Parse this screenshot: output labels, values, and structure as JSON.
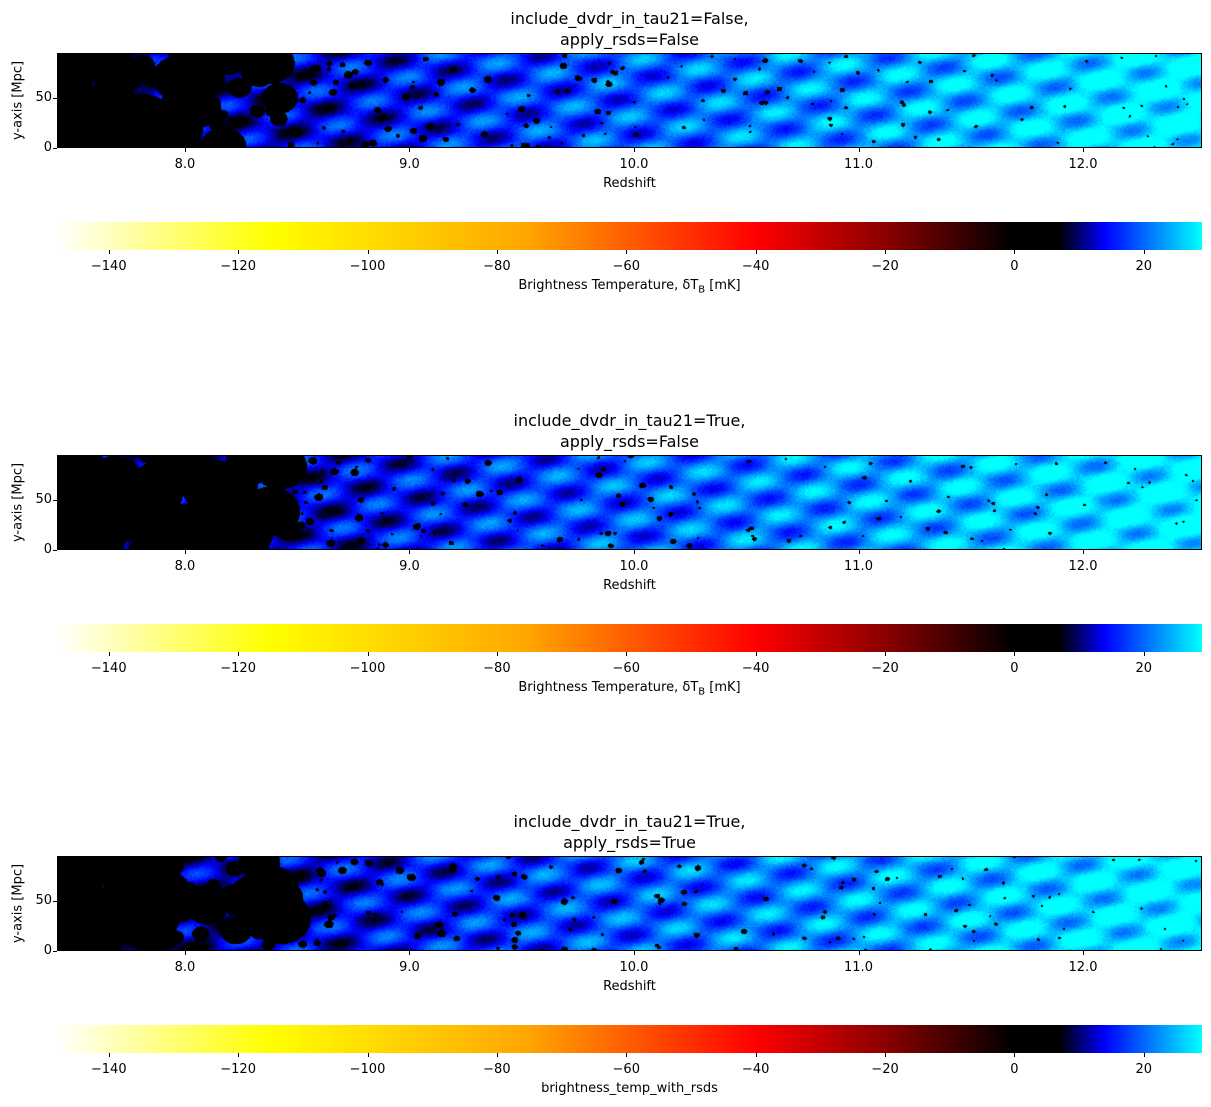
{
  "chart_data": [
    {
      "type": "heatmap",
      "title_line1": "include_dvdr_in_tau21=False,",
      "title_line2": "apply_rsds=False",
      "xlabel": "Redshift",
      "ylabel": "y-axis [Mpc]",
      "xlim": [
        7.43,
        12.53
      ],
      "ylim": [
        0,
        95
      ],
      "x_ticks": [
        "8.0",
        "9.0",
        "10.0",
        "11.0",
        "12.0"
      ],
      "x_tick_values": [
        8.0,
        9.0,
        10.0,
        11.0,
        12.0
      ],
      "y_ticks": [
        "0",
        "50"
      ],
      "y_tick_values": [
        0,
        50
      ],
      "colorbar": {
        "label": "Brightness Temperature, δT",
        "label_sub": "B",
        "label_unit": " [mK]",
        "range": [
          -148,
          29
        ],
        "ticks": [
          "−140",
          "−120",
          "−100",
          "−80",
          "−60",
          "−40",
          "−20",
          "0",
          "20"
        ],
        "tick_values": [
          -140,
          -120,
          -100,
          -80,
          -60,
          -40,
          -20,
          0,
          20
        ],
        "colormap_stops": [
          {
            "value": -148,
            "color": "#ffffff"
          },
          {
            "value": -115,
            "color": "#ffff00"
          },
          {
            "value": -75,
            "color": "#ffa500"
          },
          {
            "value": -40,
            "color": "#ff0000"
          },
          {
            "value": -20,
            "color": "#8b0000"
          },
          {
            "value": 0,
            "color": "#000000"
          },
          {
            "value": 7,
            "color": "#000000"
          },
          {
            "value": 14,
            "color": "#0000ff"
          },
          {
            "value": 29,
            "color": "#00ffff"
          }
        ]
      },
      "seed": 11
    },
    {
      "type": "heatmap",
      "title_line1": "include_dvdr_in_tau21=True,",
      "title_line2": "apply_rsds=False",
      "xlabel": "Redshift",
      "ylabel": "y-axis [Mpc]",
      "xlim": [
        7.43,
        12.53
      ],
      "ylim": [
        0,
        95
      ],
      "x_ticks": [
        "8.0",
        "9.0",
        "10.0",
        "11.0",
        "12.0"
      ],
      "x_tick_values": [
        8.0,
        9.0,
        10.0,
        11.0,
        12.0
      ],
      "y_ticks": [
        "0",
        "50"
      ],
      "y_tick_values": [
        0,
        50
      ],
      "colorbar": {
        "label": "Brightness Temperature, δT",
        "label_sub": "B",
        "label_unit": " [mK]",
        "range": [
          -148,
          29
        ],
        "ticks": [
          "−140",
          "−120",
          "−100",
          "−80",
          "−60",
          "−40",
          "−20",
          "0",
          "20"
        ],
        "tick_values": [
          -140,
          -120,
          -100,
          -80,
          -60,
          -40,
          -20,
          0,
          20
        ],
        "colormap_stops": [
          {
            "value": -148,
            "color": "#ffffff"
          },
          {
            "value": -115,
            "color": "#ffff00"
          },
          {
            "value": -75,
            "color": "#ffa500"
          },
          {
            "value": -40,
            "color": "#ff0000"
          },
          {
            "value": -20,
            "color": "#8b0000"
          },
          {
            "value": 0,
            "color": "#000000"
          },
          {
            "value": 7,
            "color": "#000000"
          },
          {
            "value": 14,
            "color": "#0000ff"
          },
          {
            "value": 29,
            "color": "#00ffff"
          }
        ]
      },
      "seed": 23
    },
    {
      "type": "heatmap",
      "title_line1": "include_dvdr_in_tau21=True,",
      "title_line2": "apply_rsds=True",
      "xlabel": "Redshift",
      "ylabel": "y-axis [Mpc]",
      "xlim": [
        7.43,
        12.53
      ],
      "ylim": [
        0,
        95
      ],
      "x_ticks": [
        "8.0",
        "9.0",
        "10.0",
        "11.0",
        "12.0"
      ],
      "x_tick_values": [
        8.0,
        9.0,
        10.0,
        11.0,
        12.0
      ],
      "y_ticks": [
        "0",
        "50"
      ],
      "y_tick_values": [
        0,
        50
      ],
      "colorbar": {
        "label": "brightness_temp_with_rsds",
        "label_sub": "",
        "label_unit": "",
        "range": [
          -148,
          29
        ],
        "ticks": [
          "−140",
          "−120",
          "−100",
          "−80",
          "−60",
          "−40",
          "−20",
          "0",
          "20"
        ],
        "tick_values": [
          -140,
          -120,
          -100,
          -80,
          -60,
          -40,
          -20,
          0,
          20
        ],
        "colormap_stops": [
          {
            "value": -148,
            "color": "#ffffff"
          },
          {
            "value": -115,
            "color": "#ffff00"
          },
          {
            "value": -75,
            "color": "#ffa500"
          },
          {
            "value": -40,
            "color": "#ff0000"
          },
          {
            "value": -20,
            "color": "#8b0000"
          },
          {
            "value": 0,
            "color": "#000000"
          },
          {
            "value": 7,
            "color": "#000000"
          },
          {
            "value": 14,
            "color": "#0000ff"
          },
          {
            "value": 29,
            "color": "#00ffff"
          }
        ]
      },
      "seed": 37
    }
  ]
}
